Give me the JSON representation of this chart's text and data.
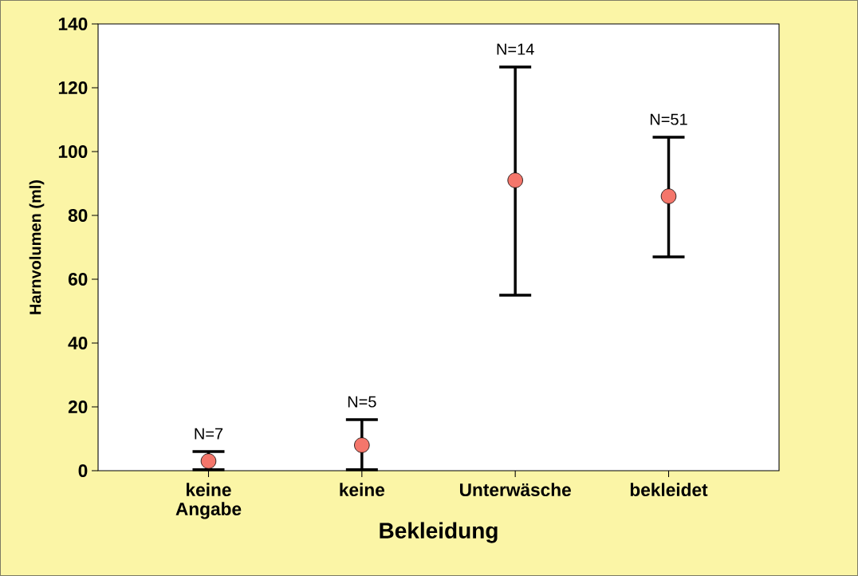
{
  "chart_data": {
    "type": "scatter",
    "xlabel": "Bekleidung",
    "ylabel": "Harnvolumen (ml)",
    "categories": [
      "keine Angabe",
      "keine",
      "Unterwäsche",
      "bekleidet"
    ],
    "values": [
      3,
      8,
      91,
      86
    ],
    "errors": [
      [
        0.3,
        6
      ],
      [
        0.3,
        16
      ],
      [
        55,
        126.5
      ],
      [
        67,
        104.5
      ]
    ],
    "color": "#f4766b",
    "marker": "circle",
    "ylim": [
      0,
      140
    ],
    "yticks": [
      0,
      20,
      40,
      60,
      80,
      100,
      120,
      140
    ],
    "annotations": [
      "N=7",
      "N=5",
      "N=14",
      "N=51"
    ]
  }
}
